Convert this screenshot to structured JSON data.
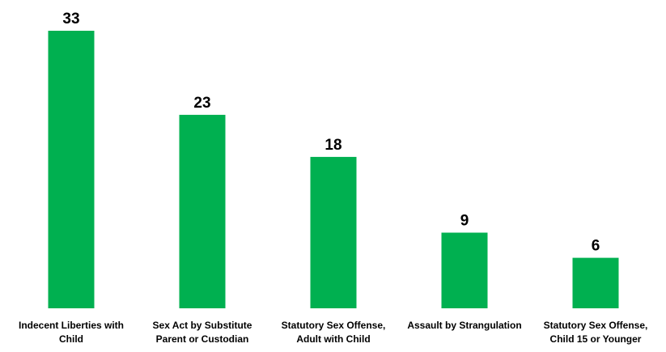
{
  "chart_data": {
    "type": "bar",
    "categories": [
      [
        "Indecent Liberties with",
        "Child"
      ],
      [
        "Sex Act by Substitute",
        "Parent or Custodian"
      ],
      [
        "Statutory Sex Offense,",
        "Adult with Child"
      ],
      [
        "Assault by Strangulation"
      ],
      [
        "Statutory Sex Offense,",
        "Child 15 or Younger"
      ]
    ],
    "values": [
      33,
      23,
      18,
      9,
      6
    ],
    "data_labels": [
      "33",
      "23",
      "18",
      "9",
      "6"
    ],
    "title": "",
    "xlabel": "",
    "ylabel": "",
    "ylim": [
      0,
      33
    ],
    "grid": false,
    "legend": "none",
    "bar_color": "#00b050"
  }
}
